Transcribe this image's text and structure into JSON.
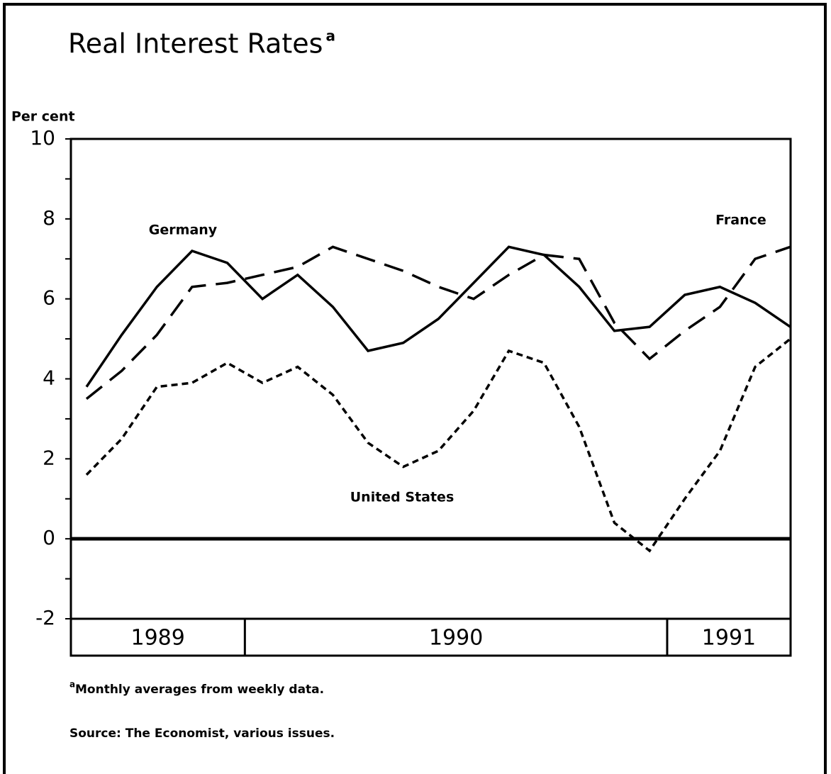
{
  "chart_data": {
    "type": "line",
    "title": "Real Interest Rates",
    "title_note_mark": "a",
    "y_axis_label": "Per cent",
    "ylim": [
      -2,
      10
    ],
    "yticks": [
      -2,
      0,
      2,
      4,
      6,
      8,
      10
    ],
    "minor_yticks": [
      -1,
      1,
      3,
      5,
      7,
      9
    ],
    "categories": [
      null,
      null,
      null,
      null,
      null,
      null,
      null,
      null,
      null,
      null,
      null,
      null,
      null,
      null,
      null,
      null,
      null,
      null,
      null,
      null,
      null
    ],
    "year_groups": [
      {
        "label": "1989",
        "months": 5
      },
      {
        "label": "1990",
        "months": 12
      },
      {
        "label": "1991",
        "months": 4
      }
    ],
    "series": [
      {
        "name": "Germany",
        "color": "#000000",
        "dash": "solid",
        "values": [
          3.8,
          5.1,
          6.3,
          7.2,
          6.9,
          6.0,
          6.6,
          5.8,
          4.7,
          4.9,
          5.5,
          6.4,
          7.3,
          7.1,
          6.3,
          5.2,
          5.3,
          6.1,
          6.3,
          5.9,
          5.3
        ]
      },
      {
        "name": "France",
        "color": "#000000",
        "dash": "long",
        "values": [
          3.5,
          4.2,
          5.1,
          6.3,
          6.4,
          6.6,
          6.8,
          7.3,
          7.0,
          6.7,
          6.3,
          6.0,
          6.6,
          7.1,
          7.0,
          5.4,
          4.5,
          5.2,
          5.8,
          7.0,
          7.3
        ]
      },
      {
        "name": "United States",
        "color": "#000000",
        "dash": "short",
        "values": [
          1.6,
          2.5,
          3.8,
          3.9,
          4.4,
          3.9,
          4.3,
          3.6,
          2.4,
          1.8,
          2.2,
          3.2,
          4.7,
          4.4,
          2.8,
          0.4,
          -0.3,
          1.0,
          2.2,
          4.3,
          5.0
        ]
      }
    ],
    "footnote_mark": "a",
    "footnote": "Monthly averages from weekly data.",
    "source": "Source: The Economist, various issues."
  }
}
